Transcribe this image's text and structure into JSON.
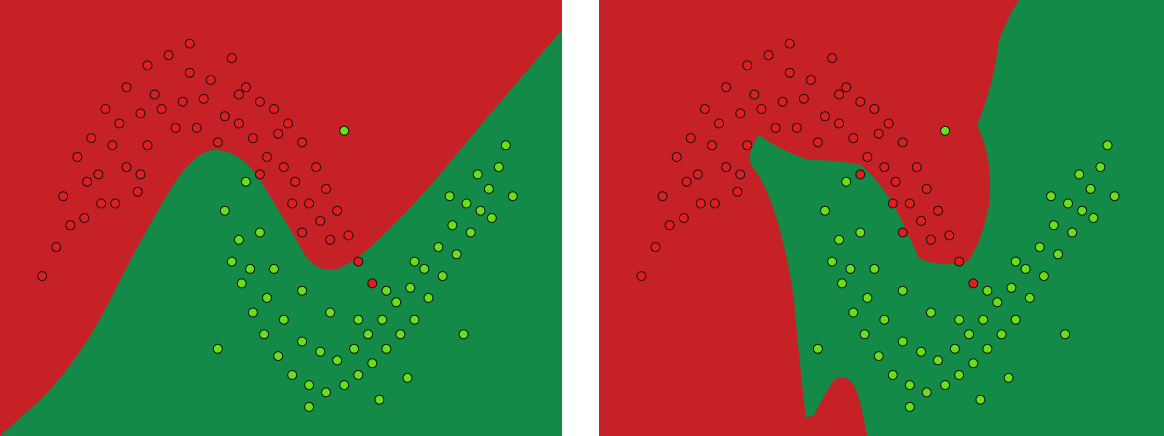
{
  "colors": {
    "class_0_region": "#c62127",
    "class_1_region": "#138a48",
    "class_0_point": "#e01e1e",
    "class_1_point": "#66e01a",
    "point_outline": "#101010",
    "background": "#ffffff"
  },
  "chart_data": [
    {
      "type": "scatter",
      "title": "",
      "xlabel": "",
      "ylabel": "",
      "xlim": [
        -1.6,
        2.4
      ],
      "ylim": [
        -1.3,
        1.7
      ],
      "grid": false,
      "legend": "none",
      "decision_regions": true,
      "series": [
        {
          "class": 0,
          "points": [
            [
              -1.2,
              0.0
            ],
            [
              -1.15,
              0.35
            ],
            [
              -1.05,
              0.62
            ],
            [
              -0.95,
              0.75
            ],
            [
              -0.85,
              0.95
            ],
            [
              -0.7,
              1.1
            ],
            [
              -0.55,
              1.25
            ],
            [
              -0.4,
              1.32
            ],
            [
              -0.25,
              1.4
            ],
            [
              -0.1,
              1.15
            ],
            [
              0.05,
              1.3
            ],
            [
              0.15,
              1.1
            ],
            [
              0.25,
              1.0
            ],
            [
              0.35,
              0.95
            ],
            [
              0.45,
              0.85
            ],
            [
              0.55,
              0.72
            ],
            [
              0.65,
              0.55
            ],
            [
              0.72,
              0.4
            ],
            [
              0.8,
              0.25
            ],
            [
              0.88,
              0.08
            ],
            [
              0.95,
              -0.1
            ],
            [
              1.05,
              -0.25
            ],
            [
              -1.1,
              0.15
            ],
            [
              -0.98,
              0.45
            ],
            [
              -0.9,
              0.5
            ],
            [
              -0.8,
              0.7
            ],
            [
              -0.75,
              0.85
            ],
            [
              -0.6,
              0.92
            ],
            [
              -0.5,
              1.05
            ],
            [
              -0.45,
              0.95
            ],
            [
              -0.3,
              1.0
            ],
            [
              -0.2,
              0.82
            ],
            [
              -0.15,
              1.02
            ],
            [
              0.0,
              0.9
            ],
            [
              0.1,
              0.85
            ],
            [
              0.2,
              0.75
            ],
            [
              0.3,
              0.62
            ],
            [
              0.42,
              0.55
            ],
            [
              0.5,
              0.45
            ],
            [
              0.6,
              0.3
            ],
            [
              0.68,
              0.18
            ],
            [
              0.75,
              0.05
            ],
            [
              -1.0,
              0.2
            ],
            [
              -0.88,
              0.3
            ],
            [
              -0.7,
              0.55
            ],
            [
              -0.55,
              0.7
            ],
            [
              -0.35,
              0.82
            ],
            [
              -0.05,
              0.72
            ],
            [
              0.25,
              0.5
            ],
            [
              0.55,
              0.1
            ],
            [
              -1.3,
              -0.2
            ],
            [
              -0.6,
              0.5
            ],
            [
              -0.25,
              1.2
            ],
            [
              0.1,
              1.05
            ],
            [
              0.38,
              0.78
            ],
            [
              0.48,
              0.3
            ],
            [
              -0.78,
              0.3
            ],
            [
              -0.62,
              0.38
            ]
          ]
        },
        {
          "class": 1,
          "points": [
            [
              0.0,
              0.25
            ],
            [
              0.05,
              -0.1
            ],
            [
              0.12,
              -0.25
            ],
            [
              0.2,
              -0.45
            ],
            [
              0.28,
              -0.6
            ],
            [
              0.38,
              -0.75
            ],
            [
              0.48,
              -0.88
            ],
            [
              0.6,
              -0.95
            ],
            [
              0.72,
              -1.0
            ],
            [
              0.85,
              -0.95
            ],
            [
              0.95,
              -0.88
            ],
            [
              1.05,
              -0.8
            ],
            [
              1.15,
              -0.7
            ],
            [
              1.25,
              -0.6
            ],
            [
              1.35,
              -0.5
            ],
            [
              1.45,
              -0.35
            ],
            [
              1.55,
              -0.2
            ],
            [
              1.65,
              -0.05
            ],
            [
              1.75,
              0.1
            ],
            [
              1.82,
              0.25
            ],
            [
              1.88,
              0.4
            ],
            [
              1.95,
              0.55
            ],
            [
              2.0,
              0.7
            ],
            [
              0.1,
              0.05
            ],
            [
              0.18,
              -0.15
            ],
            [
              0.3,
              -0.35
            ],
            [
              0.42,
              -0.5
            ],
            [
              0.55,
              -0.65
            ],
            [
              0.68,
              -0.72
            ],
            [
              0.8,
              -0.78
            ],
            [
              0.92,
              -0.7
            ],
            [
              1.02,
              -0.6
            ],
            [
              1.12,
              -0.5
            ],
            [
              1.22,
              -0.38
            ],
            [
              1.32,
              -0.28
            ],
            [
              1.42,
              -0.15
            ],
            [
              1.52,
              0.0
            ],
            [
              1.62,
              0.15
            ],
            [
              1.72,
              0.3
            ],
            [
              1.8,
              0.5
            ],
            [
              0.15,
              0.45
            ],
            [
              0.35,
              -0.15
            ],
            [
              0.55,
              -0.3
            ],
            [
              0.75,
              -0.45
            ],
            [
              0.95,
              -0.5
            ],
            [
              1.15,
              -0.3
            ],
            [
              1.35,
              -0.1
            ],
            [
              1.6,
              0.35
            ],
            [
              1.9,
              0.2
            ],
            [
              0.25,
              0.1
            ],
            [
              -0.05,
              -0.7
            ],
            [
              0.6,
              -1.1
            ],
            [
              1.1,
              -1.05
            ],
            [
              1.3,
              -0.9
            ],
            [
              1.7,
              -0.6
            ],
            [
              2.05,
              0.35
            ],
            [
              0.85,
              0.8
            ]
          ]
        }
      ]
    },
    {
      "type": "scatter",
      "title": "",
      "xlabel": "",
      "ylabel": "",
      "xlim": [
        -1.6,
        2.4
      ],
      "ylim": [
        -1.3,
        1.7
      ],
      "grid": false,
      "legend": "none",
      "decision_regions": true,
      "series": [
        {
          "class": 0,
          "points": [
            [
              -1.2,
              0.0
            ],
            [
              -1.15,
              0.35
            ],
            [
              -1.05,
              0.62
            ],
            [
              -0.95,
              0.75
            ],
            [
              -0.85,
              0.95
            ],
            [
              -0.7,
              1.1
            ],
            [
              -0.55,
              1.25
            ],
            [
              -0.4,
              1.32
            ],
            [
              -0.25,
              1.4
            ],
            [
              -0.1,
              1.15
            ],
            [
              0.05,
              1.3
            ],
            [
              0.15,
              1.1
            ],
            [
              0.25,
              1.0
            ],
            [
              0.35,
              0.95
            ],
            [
              0.45,
              0.85
            ],
            [
              0.55,
              0.72
            ],
            [
              0.65,
              0.55
            ],
            [
              0.72,
              0.4
            ],
            [
              0.8,
              0.25
            ],
            [
              0.88,
              0.08
            ],
            [
              0.95,
              -0.1
            ],
            [
              1.05,
              -0.25
            ],
            [
              -1.1,
              0.15
            ],
            [
              -0.98,
              0.45
            ],
            [
              -0.9,
              0.5
            ],
            [
              -0.8,
              0.7
            ],
            [
              -0.75,
              0.85
            ],
            [
              -0.6,
              0.92
            ],
            [
              -0.5,
              1.05
            ],
            [
              -0.45,
              0.95
            ],
            [
              -0.3,
              1.0
            ],
            [
              -0.2,
              0.82
            ],
            [
              -0.15,
              1.02
            ],
            [
              0.0,
              0.9
            ],
            [
              0.1,
              0.85
            ],
            [
              0.2,
              0.75
            ],
            [
              0.3,
              0.62
            ],
            [
              0.42,
              0.55
            ],
            [
              0.5,
              0.45
            ],
            [
              0.6,
              0.3
            ],
            [
              0.68,
              0.18
            ],
            [
              0.75,
              0.05
            ],
            [
              -1.0,
              0.2
            ],
            [
              -0.88,
              0.3
            ],
            [
              -0.7,
              0.55
            ],
            [
              -0.55,
              0.7
            ],
            [
              -0.35,
              0.82
            ],
            [
              -0.05,
              0.72
            ],
            [
              0.25,
              0.5
            ],
            [
              0.55,
              0.1
            ],
            [
              -1.3,
              -0.2
            ],
            [
              -0.6,
              0.5
            ],
            [
              -0.25,
              1.2
            ],
            [
              0.1,
              1.05
            ],
            [
              0.38,
              0.78
            ],
            [
              0.48,
              0.3
            ],
            [
              -0.78,
              0.3
            ],
            [
              -0.62,
              0.38
            ]
          ]
        },
        {
          "class": 1,
          "points": [
            [
              0.0,
              0.25
            ],
            [
              0.05,
              -0.1
            ],
            [
              0.12,
              -0.25
            ],
            [
              0.2,
              -0.45
            ],
            [
              0.28,
              -0.6
            ],
            [
              0.38,
              -0.75
            ],
            [
              0.48,
              -0.88
            ],
            [
              0.6,
              -0.95
            ],
            [
              0.72,
              -1.0
            ],
            [
              0.85,
              -0.95
            ],
            [
              0.95,
              -0.88
            ],
            [
              1.05,
              -0.8
            ],
            [
              1.15,
              -0.7
            ],
            [
              1.25,
              -0.6
            ],
            [
              1.35,
              -0.5
            ],
            [
              1.45,
              -0.35
            ],
            [
              1.55,
              -0.2
            ],
            [
              1.65,
              -0.05
            ],
            [
              1.75,
              0.1
            ],
            [
              1.82,
              0.25
            ],
            [
              1.88,
              0.4
            ],
            [
              1.95,
              0.55
            ],
            [
              2.0,
              0.7
            ],
            [
              0.1,
              0.05
            ],
            [
              0.18,
              -0.15
            ],
            [
              0.3,
              -0.35
            ],
            [
              0.42,
              -0.5
            ],
            [
              0.55,
              -0.65
            ],
            [
              0.68,
              -0.72
            ],
            [
              0.8,
              -0.78
            ],
            [
              0.92,
              -0.7
            ],
            [
              1.02,
              -0.6
            ],
            [
              1.12,
              -0.5
            ],
            [
              1.22,
              -0.38
            ],
            [
              1.32,
              -0.28
            ],
            [
              1.42,
              -0.15
            ],
            [
              1.52,
              0.0
            ],
            [
              1.62,
              0.15
            ],
            [
              1.72,
              0.3
            ],
            [
              1.8,
              0.5
            ],
            [
              0.15,
              0.45
            ],
            [
              0.35,
              -0.15
            ],
            [
              0.55,
              -0.3
            ],
            [
              0.75,
              -0.45
            ],
            [
              0.95,
              -0.5
            ],
            [
              1.15,
              -0.3
            ],
            [
              1.35,
              -0.1
            ],
            [
              1.6,
              0.35
            ],
            [
              1.9,
              0.2
            ],
            [
              0.25,
              0.1
            ],
            [
              -0.05,
              -0.7
            ],
            [
              0.6,
              -1.1
            ],
            [
              1.1,
              -1.05
            ],
            [
              1.3,
              -0.9
            ],
            [
              1.7,
              -0.6
            ],
            [
              2.05,
              0.35
            ],
            [
              0.85,
              0.8
            ]
          ]
        }
      ]
    }
  ]
}
